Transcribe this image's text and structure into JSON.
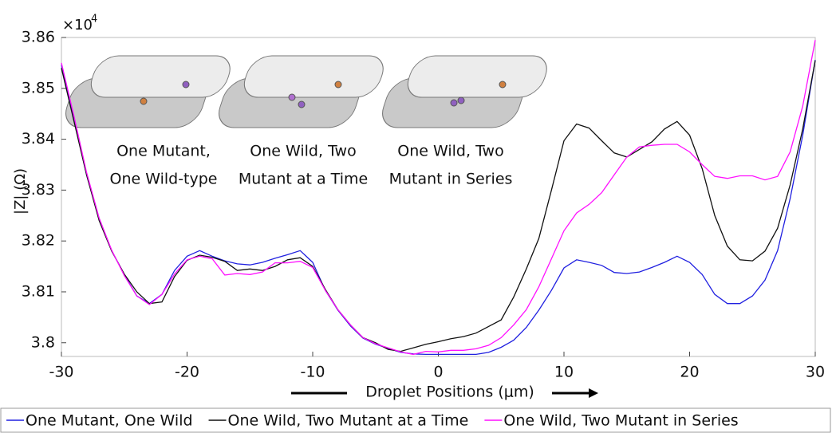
{
  "chart_data": {
    "type": "line",
    "y_label": "|Z| (Ω)",
    "x_label": "Droplet Positions (μm)",
    "y_multiplier": "×10",
    "y_multiplier_exponent": "4",
    "annotations": [
      [
        "One Mutant,",
        "One Wild-type"
      ],
      [
        "One Wild, Two",
        "Mutant at a Time"
      ],
      [
        "One Wild, Two",
        "Mutant in Series"
      ]
    ],
    "x": [
      -30,
      -29,
      -28,
      -27,
      -26,
      -25,
      -24,
      -23,
      -22,
      -21,
      -20,
      -19,
      -18,
      -17,
      -16,
      -15,
      -14,
      -13,
      -12,
      -11,
      -10,
      -9,
      -8,
      -7,
      -6,
      -5,
      -4,
      -3,
      -2,
      -1,
      0,
      1,
      2,
      3,
      4,
      5,
      6,
      7,
      8,
      9,
      10,
      11,
      12,
      13,
      14,
      15,
      16,
      17,
      18,
      19,
      20,
      21,
      22,
      23,
      24,
      25,
      26,
      27,
      28,
      29,
      30
    ],
    "series": [
      {
        "name": "One Mutant, One Wild",
        "color": "#2020e0",
        "values": [
          3.8546,
          3.8439,
          3.833,
          3.8244,
          3.8181,
          3.8134,
          3.8092,
          3.8077,
          3.8095,
          3.8142,
          3.817,
          3.8181,
          3.817,
          3.8161,
          3.8155,
          3.8153,
          3.8158,
          3.8166,
          3.8173,
          3.8181,
          3.8158,
          3.8103,
          3.8064,
          3.8033,
          3.8009,
          3.7997,
          3.7989,
          3.7981,
          3.7978,
          3.7977,
          3.7977,
          3.7977,
          3.7977,
          3.7977,
          3.7981,
          3.7991,
          3.8005,
          3.803,
          3.8064,
          3.8103,
          3.8147,
          3.8163,
          3.8158,
          3.8152,
          3.8138,
          3.8136,
          3.8139,
          3.8148,
          3.8158,
          3.817,
          3.8158,
          3.8134,
          3.8095,
          3.8077,
          3.8077,
          3.8092,
          3.8123,
          3.8181,
          3.8283,
          3.8408,
          3.8556
        ]
      },
      {
        "name": "One Wild, Two Mutant at a Time",
        "color": "#111111",
        "values": [
          3.854,
          3.8435,
          3.833,
          3.824,
          3.818,
          3.8135,
          3.81,
          3.8077,
          3.808,
          3.813,
          3.8162,
          3.8172,
          3.8168,
          3.816,
          3.8142,
          3.8145,
          3.8142,
          3.815,
          3.8163,
          3.8167,
          3.815,
          3.8105,
          3.8065,
          3.8035,
          3.801,
          3.8,
          3.7987,
          3.7983,
          3.799,
          3.7997,
          3.8002,
          3.8008,
          3.8012,
          3.8019,
          3.8032,
          3.8045,
          3.809,
          3.8145,
          3.8205,
          3.83,
          3.8397,
          3.843,
          3.8422,
          3.8397,
          3.8373,
          3.8365,
          3.838,
          3.8395,
          3.842,
          3.8435,
          3.8408,
          3.8342,
          3.825,
          3.819,
          3.8163,
          3.8161,
          3.818,
          3.8225,
          3.831,
          3.842,
          3.8555
        ]
      },
      {
        "name": "One Wild, Two Mutant in Series",
        "color": "#ff10ff",
        "values": [
          3.855,
          3.8445,
          3.8335,
          3.8245,
          3.8182,
          3.8132,
          3.8092,
          3.8075,
          3.8095,
          3.8135,
          3.8163,
          3.817,
          3.8165,
          3.8133,
          3.8136,
          3.8134,
          3.8139,
          3.8157,
          3.8157,
          3.816,
          3.8148,
          3.8103,
          3.8065,
          3.8035,
          3.801,
          3.7998,
          3.799,
          3.7982,
          3.7977,
          3.7983,
          3.7982,
          3.7985,
          3.7985,
          3.7988,
          3.7995,
          3.801,
          3.8035,
          3.8065,
          3.811,
          3.8165,
          3.822,
          3.8255,
          3.8272,
          3.8295,
          3.833,
          3.8365,
          3.8385,
          3.8388,
          3.839,
          3.839,
          3.8375,
          3.835,
          3.8327,
          3.8323,
          3.8328,
          3.8328,
          3.832,
          3.8327,
          3.8375,
          3.8465,
          3.8595
        ]
      }
    ],
    "xlim": [
      -30,
      30
    ],
    "xticks": [
      -30,
      -20,
      -10,
      0,
      10,
      20,
      30
    ],
    "ylim": [
      3.7973,
      3.86
    ],
    "yticks": [
      3.8,
      3.81,
      3.82,
      3.83,
      3.84,
      3.85,
      3.86
    ]
  }
}
